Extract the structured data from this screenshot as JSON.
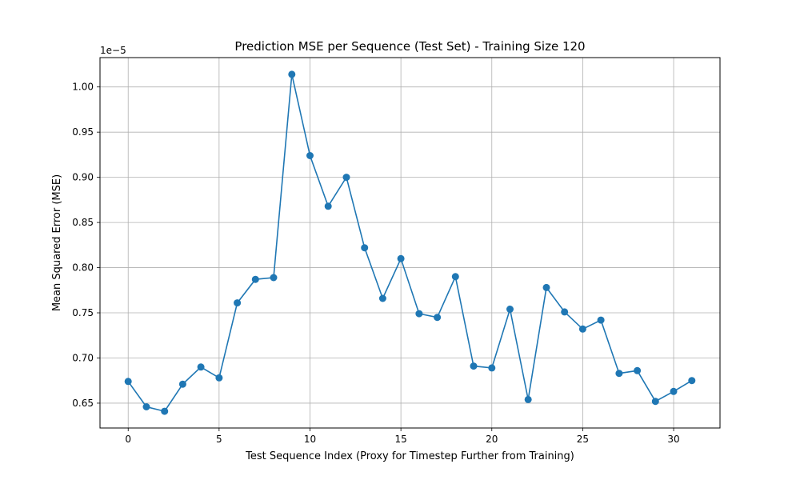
{
  "chart_data": {
    "type": "line",
    "title": "Prediction MSE per Sequence (Test Set) - Training Size 120",
    "xlabel": "Test Sequence Index (Proxy for Timestep Further from Training)",
    "ylabel": "Mean Squared Error (MSE)",
    "y_offset_label": "1e−5",
    "xlim": [
      -1.55,
      32.55
    ],
    "ylim": [
      0.6225,
      1.0325
    ],
    "x_ticks": [
      0,
      5,
      10,
      15,
      20,
      25,
      30
    ],
    "x_tick_labels": [
      "0",
      "5",
      "10",
      "15",
      "20",
      "25",
      "30"
    ],
    "y_ticks": [
      0.65,
      0.7,
      0.75,
      0.8,
      0.85,
      0.9,
      0.95,
      1.0
    ],
    "y_tick_labels": [
      "0.65",
      "0.70",
      "0.75",
      "0.80",
      "0.85",
      "0.90",
      "0.95",
      "1.00"
    ],
    "grid": true,
    "line_color": "#1f77b4",
    "marker": "circle",
    "x": [
      0,
      1,
      2,
      3,
      4,
      5,
      6,
      7,
      8,
      9,
      10,
      11,
      12,
      13,
      14,
      15,
      16,
      17,
      18,
      19,
      20,
      21,
      22,
      23,
      24,
      25,
      26,
      27,
      28,
      29,
      30,
      31
    ],
    "values": [
      0.674,
      0.646,
      0.641,
      0.671,
      0.69,
      0.678,
      0.761,
      0.787,
      0.789,
      1.014,
      0.924,
      0.868,
      0.9,
      0.822,
      0.766,
      0.81,
      0.749,
      0.745,
      0.79,
      0.691,
      0.689,
      0.754,
      0.654,
      0.778,
      0.751,
      0.732,
      0.742,
      0.683,
      0.686,
      0.652,
      0.663,
      0.675
    ]
  }
}
